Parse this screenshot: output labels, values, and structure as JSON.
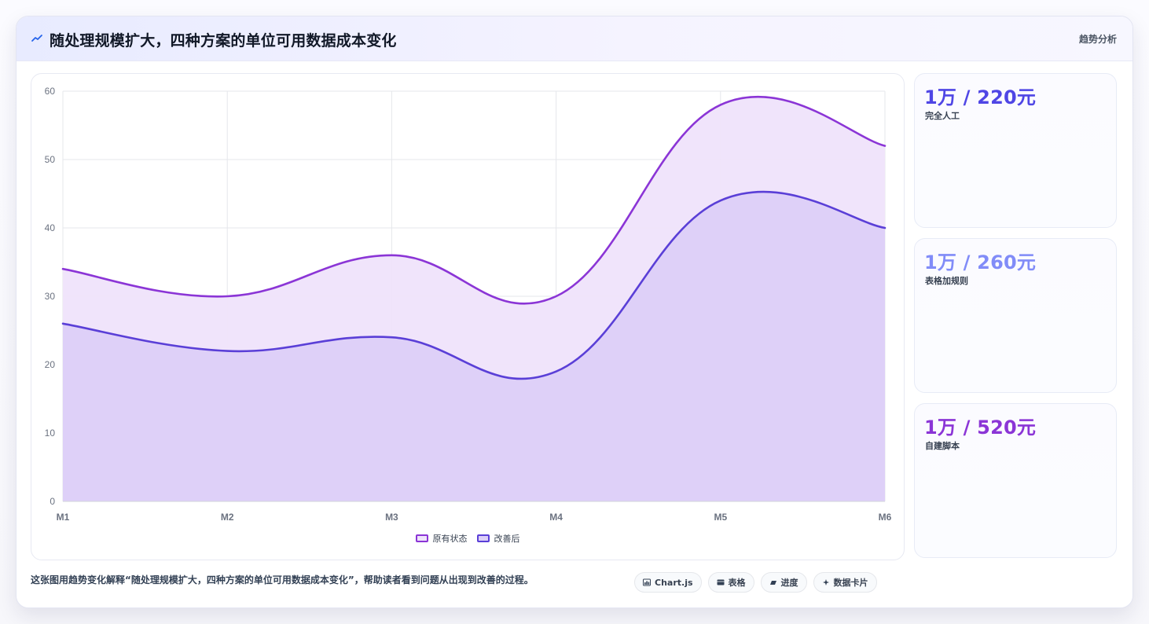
{
  "header": {
    "title": "随处理规模扩大，四种方案的单位可用数据成本变化",
    "tag": "趋势分析",
    "icon": "trend-line-icon"
  },
  "chart_data": {
    "type": "area",
    "categories": [
      "M1",
      "M2",
      "M3",
      "M4",
      "M5",
      "M6"
    ],
    "series": [
      {
        "name": "原有状态",
        "values": [
          34,
          30,
          36,
          30,
          58,
          52
        ],
        "color": "#8b35d6",
        "fill": "#efe3fb"
      },
      {
        "name": "改善后",
        "values": [
          26,
          22,
          24,
          19,
          44,
          40
        ],
        "color": "#5a3fd7",
        "fill": "#dccff8"
      }
    ],
    "ylim": [
      0,
      60
    ],
    "yticks": [
      0,
      10,
      20,
      30,
      40,
      50,
      60
    ],
    "grid": true,
    "legend_position": "bottom-center",
    "title": "",
    "xlabel": "",
    "ylabel": ""
  },
  "side_cards": [
    {
      "value": "1万 / 220元",
      "label": "完全人工",
      "color": "#4f46e5"
    },
    {
      "value": "1万 / 260元",
      "label": "表格加规则",
      "color": "#818cf8"
    },
    {
      "value": "1万 / 520元",
      "label": "自建脚本",
      "color": "#8b35d6"
    }
  ],
  "footer": {
    "description": "这张图用趋势变化解释“随处理规模扩大，四种方案的单位可用数据成本变化”，帮助读者看到问题从出现到改善的过程。",
    "pills": [
      {
        "label": "Chart.js",
        "icon": "chart-icon"
      },
      {
        "label": "表格",
        "icon": "table-icon"
      },
      {
        "label": "进度",
        "icon": "progress-icon"
      },
      {
        "label": "数据卡片",
        "icon": "card-icon"
      }
    ]
  }
}
